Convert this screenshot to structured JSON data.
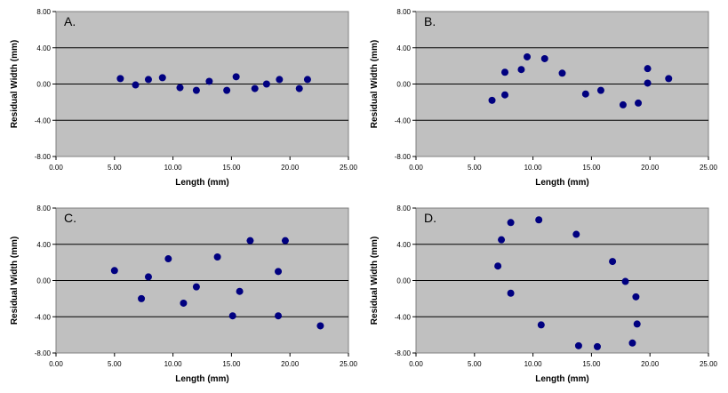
{
  "chart_data": [
    {
      "type": "scatter",
      "panel_label": "A.",
      "xlabel": "Length (mm)",
      "ylabel": "Residual Width (mm)",
      "xlim": [
        0,
        25
      ],
      "ylim": [
        -8,
        8
      ],
      "x_ticks": [
        "0.00",
        "5.00",
        "10.00",
        "15.00",
        "20.00",
        "25.00"
      ],
      "y_ticks": [
        "8.00",
        "4.00",
        "0.00",
        "-4.00",
        "-8.00"
      ],
      "gridlines": [
        4,
        0,
        -4
      ],
      "plot_background": "#c0c0c0",
      "marker_color": "#000080",
      "points": [
        [
          5.5,
          0.6
        ],
        [
          6.8,
          -0.1
        ],
        [
          7.9,
          0.5
        ],
        [
          9.1,
          0.7
        ],
        [
          10.6,
          -0.4
        ],
        [
          12.0,
          -0.7
        ],
        [
          13.1,
          0.3
        ],
        [
          14.6,
          -0.7
        ],
        [
          15.4,
          0.8
        ],
        [
          17.0,
          -0.5
        ],
        [
          18.0,
          0.0
        ],
        [
          19.1,
          0.5
        ],
        [
          20.8,
          -0.5
        ],
        [
          21.5,
          0.5
        ]
      ]
    },
    {
      "type": "scatter",
      "panel_label": "B.",
      "xlabel": "Length (mm)",
      "ylabel": "Residual Width (mm)",
      "xlim": [
        0,
        25
      ],
      "ylim": [
        -8,
        8
      ],
      "x_ticks": [
        "0.00",
        "5.00",
        "10.00",
        "15.00",
        "20.00",
        "25.00"
      ],
      "y_ticks": [
        "8.00",
        "4.00",
        "0.00",
        "-4.00",
        "-8.00"
      ],
      "gridlines": [
        4,
        0,
        -4
      ],
      "plot_background": "#c0c0c0",
      "marker_color": "#000080",
      "points": [
        [
          6.5,
          -1.8
        ],
        [
          7.6,
          1.3
        ],
        [
          7.6,
          -1.2
        ],
        [
          9.0,
          1.6
        ],
        [
          9.5,
          3.0
        ],
        [
          11.0,
          2.8
        ],
        [
          12.5,
          1.2
        ],
        [
          14.5,
          -1.1
        ],
        [
          15.8,
          -0.7
        ],
        [
          17.7,
          -2.3
        ],
        [
          19.0,
          -2.1
        ],
        [
          19.8,
          1.7
        ],
        [
          19.8,
          0.1
        ],
        [
          21.6,
          0.6
        ]
      ]
    },
    {
      "type": "scatter",
      "panel_label": "C.",
      "xlabel": "Length (mm)",
      "ylabel": "Residual Width (mm)",
      "xlim": [
        0,
        25
      ],
      "ylim": [
        -8,
        8
      ],
      "x_ticks": [
        "0.00",
        "5.00",
        "10.00",
        "15.00",
        "20.00",
        "25.00"
      ],
      "y_ticks": [
        "8.00",
        "4.00",
        "0.00",
        "-4.00",
        "-8.00"
      ],
      "gridlines": [
        4,
        0,
        -4
      ],
      "plot_background": "#c0c0c0",
      "marker_color": "#000080",
      "points": [
        [
          5.0,
          1.1
        ],
        [
          7.3,
          -2.0
        ],
        [
          7.9,
          0.4
        ],
        [
          9.6,
          2.4
        ],
        [
          10.9,
          -2.5
        ],
        [
          12.0,
          -0.7
        ],
        [
          13.8,
          2.6
        ],
        [
          15.1,
          -3.9
        ],
        [
          15.7,
          -1.2
        ],
        [
          16.6,
          4.4
        ],
        [
          19.0,
          1.0
        ],
        [
          19.0,
          -3.9
        ],
        [
          19.6,
          4.4
        ],
        [
          22.6,
          -5.0
        ]
      ]
    },
    {
      "type": "scatter",
      "panel_label": "D.",
      "xlabel": "Length (mm)",
      "ylabel": "Residual Width (mm)",
      "xlim": [
        0,
        25
      ],
      "ylim": [
        -8,
        8
      ],
      "x_ticks": [
        "0.00",
        "5.00",
        "10.00",
        "15.00",
        "20.00",
        "25.00"
      ],
      "y_ticks": [
        "8.00",
        "4.00",
        "0.00",
        "-4.00",
        "-8.00"
      ],
      "gridlines": [
        4,
        0,
        -4
      ],
      "plot_background": "#c0c0c0",
      "marker_color": "#000080",
      "points": [
        [
          7.0,
          1.6
        ],
        [
          7.3,
          4.5
        ],
        [
          8.1,
          6.4
        ],
        [
          8.1,
          -1.4
        ],
        [
          10.5,
          6.7
        ],
        [
          10.7,
          -4.9
        ],
        [
          13.7,
          5.1
        ],
        [
          13.9,
          -7.2
        ],
        [
          15.5,
          -7.3
        ],
        [
          16.8,
          2.1
        ],
        [
          17.9,
          -0.1
        ],
        [
          18.5,
          -6.9
        ],
        [
          18.8,
          -1.8
        ],
        [
          18.9,
          -4.8
        ]
      ]
    }
  ]
}
